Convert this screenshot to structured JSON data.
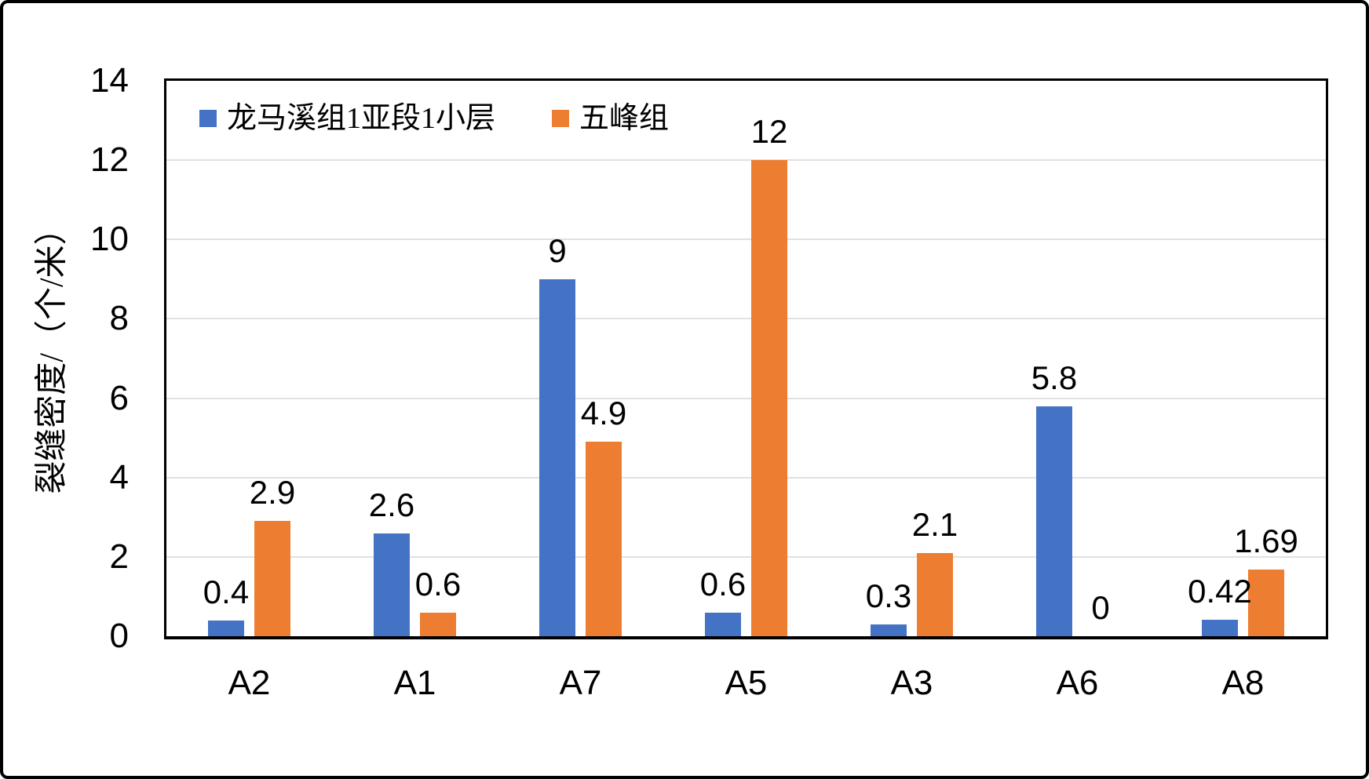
{
  "chart_data": {
    "type": "bar",
    "title": "",
    "categories": [
      "A2",
      "A1",
      "A7",
      "A5",
      "A3",
      "A6",
      "A8"
    ],
    "series": [
      {
        "name": "龙马溪组1亚段1小层",
        "color": "#4472C4",
        "values": [
          0.4,
          2.6,
          9,
          0.6,
          0.3,
          5.8,
          0.42
        ],
        "labels": [
          "0.4",
          "2.6",
          "9",
          "0.6",
          "0.3",
          "5.8",
          "0.42"
        ]
      },
      {
        "name": "五峰组",
        "color": "#ED7D31",
        "values": [
          2.9,
          0.6,
          4.9,
          12,
          2.1,
          0,
          1.69
        ],
        "labels": [
          "2.9",
          "0.6",
          "4.9",
          "12",
          "2.1",
          "0",
          "1.69"
        ]
      }
    ],
    "xlabel": "",
    "ylabel": "裂缝密度/（个/米）",
    "ylim": [
      0,
      14
    ],
    "ytick_step": 2,
    "yticks": [
      "0",
      "2",
      "4",
      "6",
      "8",
      "10",
      "12",
      "14"
    ],
    "grid": true,
    "legend_position": "top-inside-left"
  },
  "colors": {
    "series1": "#4472C4",
    "series2": "#ED7D31",
    "gridline": "#E1E1E1",
    "axis": "#000000",
    "background": "#FFFFFF",
    "text": "#000000"
  }
}
